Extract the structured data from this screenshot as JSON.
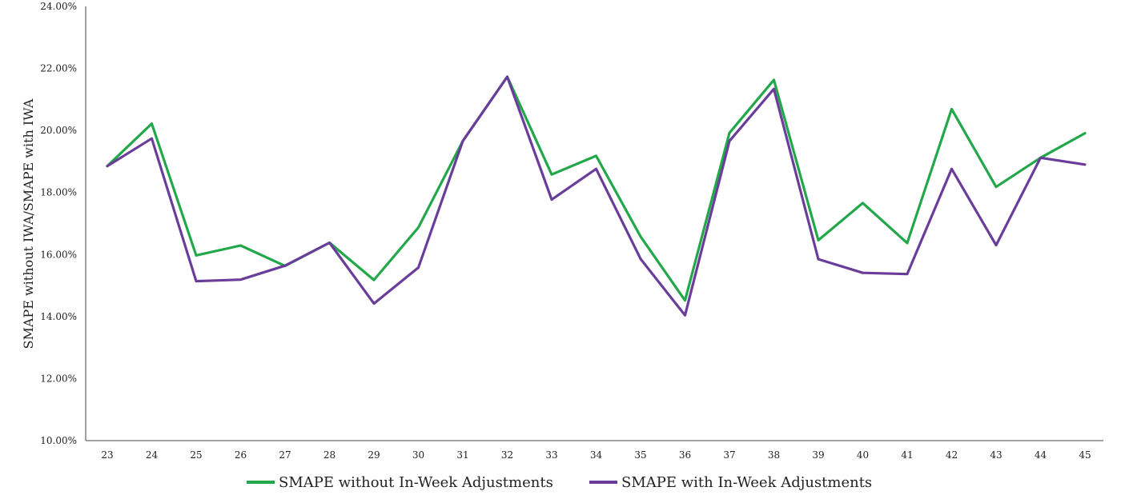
{
  "chart_data": {
    "type": "line",
    "xlabel": "",
    "ylabel": "SMAPE without IWA/SMAPE with IWA",
    "ylim": [
      0.1,
      0.24
    ],
    "yticks": [
      "24.00%",
      "22.00%",
      "20.00%",
      "18.00%",
      "16.00%",
      "14.00%",
      "12.00%",
      "10.00%"
    ],
    "categories": [
      "23",
      "24",
      "25",
      "26",
      "27",
      "28",
      "29",
      "30",
      "31",
      "32",
      "33",
      "34",
      "35",
      "36",
      "37",
      "38",
      "39",
      "40",
      "41",
      "42",
      "43",
      "44",
      "45"
    ],
    "grid": false,
    "legend_position": "bottom",
    "series": [
      {
        "name": "SMAPE without In-Week Adjustments",
        "color": "#22a84a",
        "values": [
          0.1885,
          0.2022,
          0.1597,
          0.1629,
          0.1563,
          0.1638,
          0.1518,
          0.1687,
          0.1966,
          0.2173,
          0.1858,
          0.1918,
          0.1658,
          0.1452,
          0.1992,
          0.2163,
          0.1646,
          0.1766,
          0.1637,
          0.2069,
          0.1818,
          0.1912,
          0.1991
        ]
      },
      {
        "name": "SMAPE with In-Week Adjustments",
        "color": "#6a3d9a",
        "values": [
          0.1885,
          0.1974,
          0.1514,
          0.1519,
          0.1564,
          0.1638,
          0.1442,
          0.1558,
          0.1966,
          0.2173,
          0.1777,
          0.1876,
          0.1586,
          0.1404,
          0.1966,
          0.2134,
          0.1585,
          0.1541,
          0.1537,
          0.1876,
          0.163,
          0.1912,
          0.189
        ]
      }
    ]
  }
}
